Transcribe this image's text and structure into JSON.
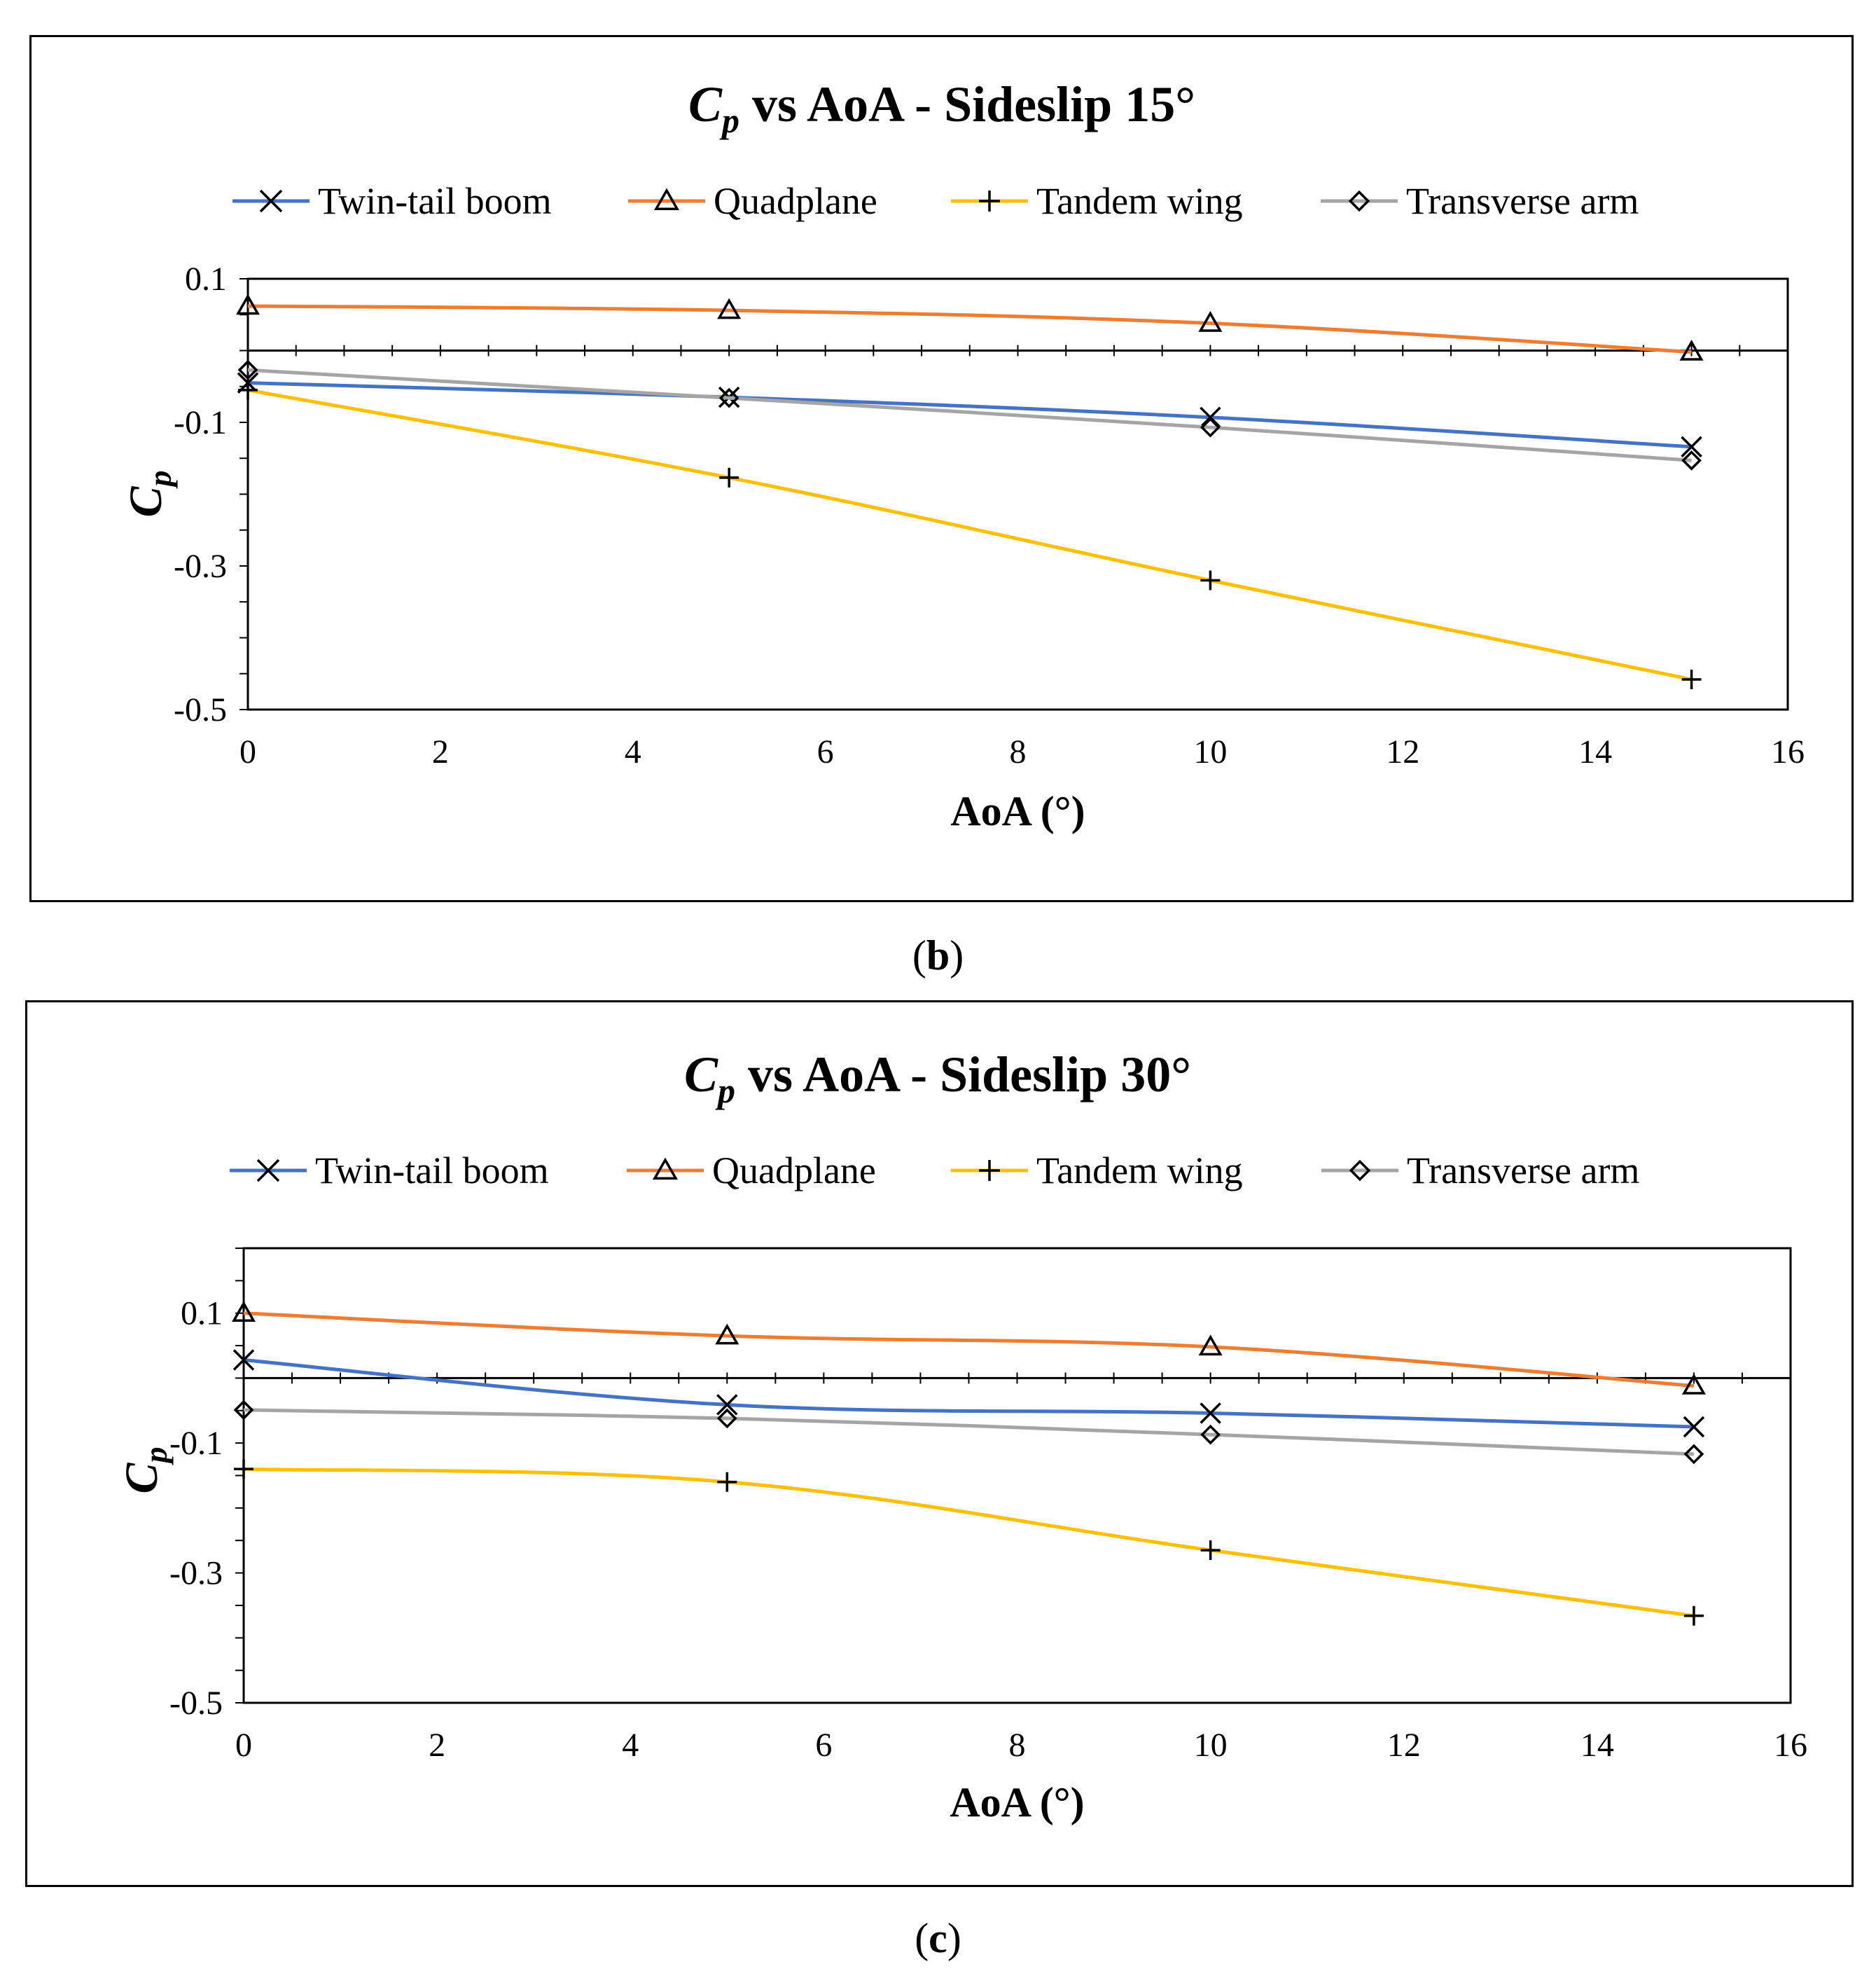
{
  "chart_data": [
    {
      "type": "line",
      "panel_label": "b",
      "title_main": "C",
      "title_sub": "p",
      "title_rest": " vs AoA - Sideslip 15°",
      "xlabel": "AoA (°)",
      "ylabel_main": "C",
      "ylabel_sub": "p",
      "xlim": [
        0,
        16
      ],
      "ylim": [
        -0.5,
        0.1
      ],
      "xticks": [
        "0",
        "2",
        "4",
        "6",
        "8",
        "10",
        "12",
        "14",
        "16"
      ],
      "yticks": [
        "0.1",
        "-0.1",
        "-0.3",
        "-0.5"
      ],
      "legend_position": "top",
      "x": [
        0,
        5,
        10,
        15
      ],
      "series": [
        {
          "name": "Twin-tail boom",
          "marker": "x",
          "color": "#4472C4",
          "values": [
            -0.045,
            -0.065,
            -0.093,
            -0.134
          ]
        },
        {
          "name": "Quadplane",
          "marker": "triangle",
          "color": "#ED7D31",
          "values": [
            0.062,
            0.056,
            0.038,
            -0.002
          ]
        },
        {
          "name": "Tandem wing",
          "marker": "plus",
          "color": "#FFC000",
          "values": [
            -0.055,
            -0.177,
            -0.32,
            -0.458
          ]
        },
        {
          "name": "Transverse arm",
          "marker": "diamond",
          "color": "#A5A5A5",
          "values": [
            -0.027,
            -0.066,
            -0.107,
            -0.153
          ]
        }
      ]
    },
    {
      "type": "line",
      "panel_label": "c",
      "title_main": "C",
      "title_sub": "p",
      "title_rest": " vs AoA - Sideslip 30°",
      "xlabel": "AoA (°)",
      "ylabel_main": "C",
      "ylabel_sub": "p",
      "xlim": [
        0,
        16
      ],
      "ylim": [
        -0.5,
        0.2
      ],
      "xticks": [
        "0",
        "2",
        "4",
        "6",
        "8",
        "10",
        "12",
        "14",
        "16"
      ],
      "yticks": [
        "0.1",
        "-0.1",
        "-0.3",
        "-0.5"
      ],
      "legend_position": "top",
      "x": [
        0,
        5,
        10,
        15
      ],
      "series": [
        {
          "name": "Twin-tail boom",
          "marker": "x",
          "color": "#4472C4",
          "values": [
            0.028,
            -0.041,
            -0.054,
            -0.075
          ]
        },
        {
          "name": "Quadplane",
          "marker": "triangle",
          "color": "#ED7D31",
          "values": [
            0.1,
            0.065,
            0.048,
            -0.012
          ]
        },
        {
          "name": "Tandem wing",
          "marker": "plus",
          "color": "#FFC000",
          "values": [
            -0.14,
            -0.16,
            -0.265,
            -0.366
          ]
        },
        {
          "name": "Transverse arm",
          "marker": "diamond",
          "color": "#A5A5A5",
          "values": [
            -0.049,
            -0.062,
            -0.087,
            -0.117
          ]
        }
      ]
    }
  ]
}
